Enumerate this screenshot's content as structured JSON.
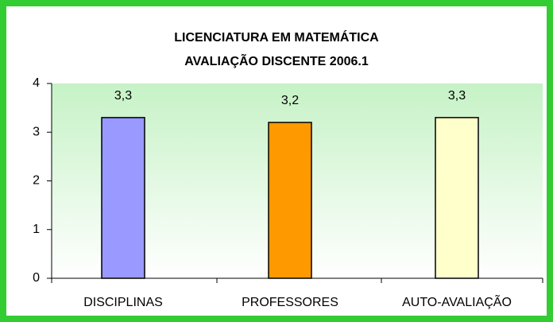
{
  "chart_data": {
    "type": "bar",
    "title": "LICENCIATURA EM MATEMÁTICA",
    "subtitle": "AVALIAÇÃO DISCENTE 2006.1",
    "categories": [
      "DISCIPLINAS",
      "PROFESSORES",
      "AUTO-AVALIAÇÃO"
    ],
    "values": [
      3.3,
      3.2,
      3.3
    ],
    "value_labels": [
      "3,3",
      "3,2",
      "3,3"
    ],
    "colors": [
      "#9999ff",
      "#ff9900",
      "#ffffcc"
    ],
    "ylim": [
      0,
      4
    ],
    "yticks": [
      0,
      1,
      2,
      3,
      4
    ]
  }
}
